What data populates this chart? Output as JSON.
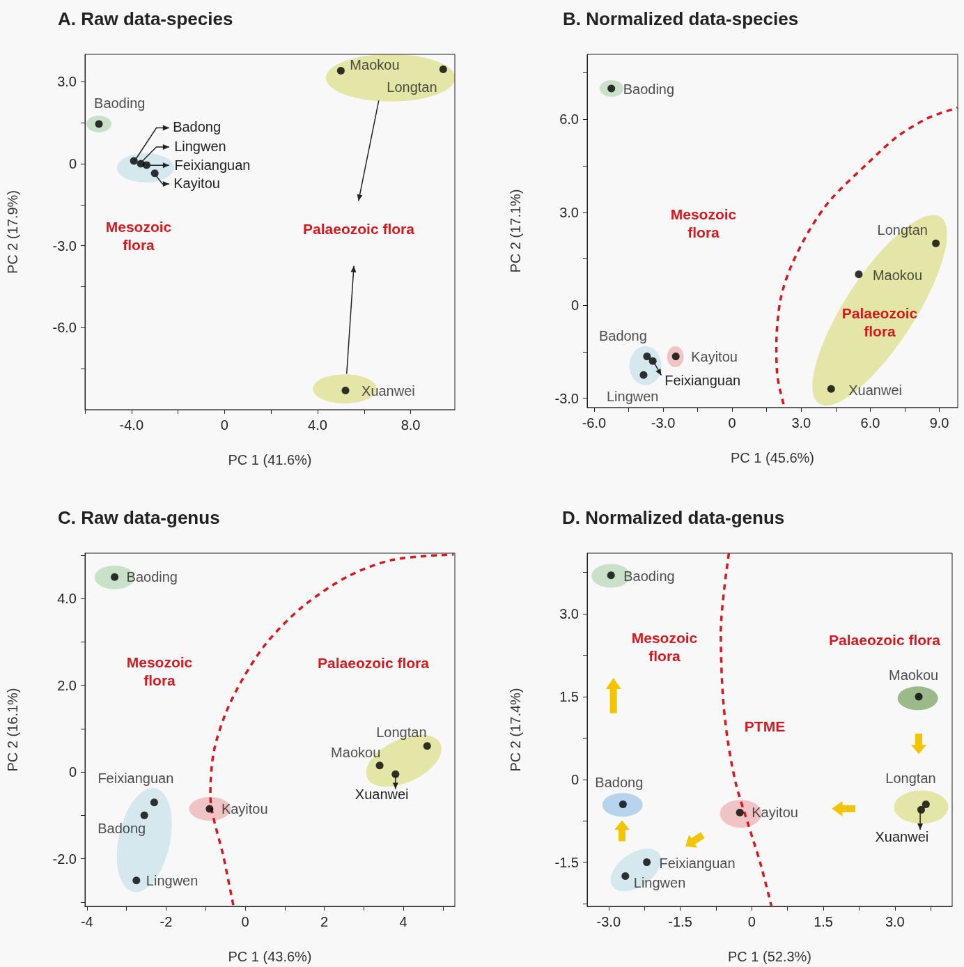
{
  "chart_data": [
    {
      "type": "scatter",
      "title": "A. Raw data-species",
      "xlabel": "PC 1 (41.6%)",
      "ylabel": "PC 2 (17.9%)",
      "marker": "circle",
      "xlim": [
        -6,
        9.9
      ],
      "ylim": [
        -9,
        4
      ],
      "xticks": [
        {
          "value": -6,
          "label": null
        },
        {
          "value": -4,
          "label": "-4.0"
        },
        {
          "value": -2,
          "label": null
        },
        0,
        {
          "value": 2,
          "label": null
        },
        {
          "value": 4,
          "label": "4.0"
        },
        {
          "value": 6,
          "label": null
        },
        {
          "value": 8,
          "label": "8.0"
        }
      ],
      "yticks": [
        {
          "value": -7.5,
          "label": null
        },
        {
          "value": -6,
          "label": "-6.0"
        },
        {
          "value": -4.5,
          "label": null
        },
        {
          "value": -3,
          "label": "-3.0"
        },
        {
          "value": -1.5,
          "label": null
        },
        0,
        {
          "value": 1.5,
          "label": null
        },
        {
          "value": 3,
          "label": "3.0"
        }
      ],
      "annotations": [
        "Mesozoic flora",
        "Palaeozoic flora",
        {
          "text": "Badong",
          "x": -3.9,
          "y": 0.1
        },
        {
          "text": "Lingwen",
          "x": -3.6,
          "y": 0.0
        },
        {
          "text": "Feixianguan",
          "x": -3.35,
          "y": -0.05
        },
        {
          "text": "Kayitou",
          "x": -3.0,
          "y": -0.35
        }
      ],
      "series": [
        {
          "name": "Baoding",
          "color": "#000000",
          "x": [
            -5.4
          ],
          "values": [
            1.45
          ]
        },
        {
          "color": "#000000",
          "x": [
            -3.9
          ],
          "values": [
            0.1
          ]
        },
        {
          "color": "#000000",
          "x": [
            -3.6
          ],
          "values": [
            0.0
          ]
        },
        {
          "color": "#000000",
          "x": [
            -3.35
          ],
          "values": [
            -0.05
          ]
        },
        {
          "color": "#000000",
          "x": [
            -3.0
          ],
          "values": [
            -0.35
          ]
        },
        {
          "name": "Maokou",
          "color": "#000000",
          "x": [
            5.0
          ],
          "values": [
            3.4
          ]
        },
        {
          "name": "Longtan",
          "color": "#000000",
          "x": [
            9.4
          ],
          "values": [
            3.45
          ]
        },
        {
          "name": "Xuanwei",
          "color": "#000000",
          "x": [
            5.2
          ],
          "values": [
            -8.3
          ]
        }
      ]
    },
    {
      "type": "scatter",
      "title": "B. Normalized data-species",
      "xlabel": "PC 1 (45.6%)",
      "ylabel": "PC 2 (17.1%)",
      "marker": "circle",
      "xlim": [
        -6.3,
        9.8
      ],
      "ylim": [
        -3.3,
        8.1
      ],
      "xticks": [
        {
          "value": -6,
          "label": "-6.0"
        },
        {
          "value": -4.5,
          "label": null
        },
        {
          "value": -3,
          "label": "-3.0"
        },
        {
          "value": -1.5,
          "label": null
        },
        0,
        {
          "value": 1.5,
          "label": null
        },
        {
          "value": 3,
          "label": "3.0"
        },
        {
          "value": 4.5,
          "label": null
        },
        {
          "value": 6,
          "label": "6.0"
        },
        {
          "value": 7.5,
          "label": null
        },
        {
          "value": 9,
          "label": "9.0"
        }
      ],
      "yticks": [
        {
          "value": -3,
          "label": "-3.0"
        },
        {
          "value": -1.5,
          "label": null
        },
        0,
        {
          "value": 1.5,
          "label": null
        },
        {
          "value": 3,
          "label": "3.0"
        },
        {
          "value": 4.5,
          "label": null
        },
        {
          "value": 6,
          "label": "6.0"
        },
        {
          "value": 7.5,
          "label": null
        }
      ],
      "annotations": [
        "Mesozoic flora",
        "Palaeozoic flora",
        {
          "text": "Feixianguan",
          "x": -3.45,
          "y": -1.8
        }
      ],
      "series": [
        {
          "name": "Baoding",
          "color": "#000000",
          "x": [
            -5.25
          ],
          "values": [
            7.0
          ]
        },
        {
          "name": "Badong",
          "color": "#000000",
          "x": [
            -3.7
          ],
          "values": [
            -1.65
          ]
        },
        {
          "name": "Lingwen",
          "color": "#000000",
          "x": [
            -3.85
          ],
          "values": [
            -2.25
          ]
        },
        {
          "color": "#000000",
          "x": [
            -3.45
          ],
          "values": [
            -1.8
          ]
        },
        {
          "name": "Kayitou",
          "color": "#000000",
          "x": [
            -2.45
          ],
          "values": [
            -1.65
          ]
        },
        {
          "name": "Maokou",
          "color": "#000000",
          "x": [
            5.5
          ],
          "values": [
            1.0
          ]
        },
        {
          "name": "Longtan",
          "color": "#000000",
          "x": [
            8.85
          ],
          "values": [
            2.0
          ]
        },
        {
          "name": "Xuanwei",
          "color": "#000000",
          "x": [
            4.3
          ],
          "values": [
            -2.7
          ]
        },
        {
          "type": "line",
          "color": "#d7191f",
          "line_style": "dashed",
          "marker": "none",
          "x": [
            2.23,
            1.96,
            1.92,
            2.1,
            2.56,
            3.36,
            4.28,
            5.88,
            7.2,
            8.53,
            9.8
          ],
          "values": [
            -3.19,
            -2.26,
            -1.28,
            0.19,
            1.26,
            2.43,
            3.41,
            4.58,
            5.46,
            6.05,
            6.38
          ]
        }
      ]
    },
    {
      "type": "scatter",
      "title": "C. Raw data-genus",
      "xlabel": "PC 1 (43.6%)",
      "ylabel": "PC 2 (16.1%)",
      "marker": "circle",
      "xlim": [
        -4.05,
        5.3
      ],
      "ylim": [
        -3.1,
        5.05
      ],
      "xticks": [
        -4,
        {
          "value": -3,
          "label": null
        },
        -2,
        {
          "value": -1,
          "label": null
        },
        0,
        {
          "value": 1,
          "label": null
        },
        2,
        {
          "value": 3,
          "label": null
        },
        4,
        {
          "value": 5,
          "label": null
        }
      ],
      "yticks": [
        {
          "value": -3,
          "label": null
        },
        {
          "value": -2,
          "label": "-2.0"
        },
        {
          "value": -1,
          "label": null
        },
        0,
        {
          "value": 1,
          "label": null
        },
        {
          "value": 2,
          "label": "2.0"
        },
        {
          "value": 3,
          "label": null
        },
        {
          "value": 4,
          "label": "4.0"
        },
        {
          "value": 5,
          "label": null
        }
      ],
      "annotations": [
        "Mesozoic flora",
        "Palaeozoic flora",
        {
          "text": "Xuanwei",
          "x": 3.8,
          "y": -0.05
        }
      ],
      "series": [
        {
          "name": "Baoding",
          "color": "#000000",
          "x": [
            -3.3
          ],
          "values": [
            4.5
          ]
        },
        {
          "name": "Badong",
          "color": "#000000",
          "x": [
            -2.55
          ],
          "values": [
            -1.0
          ]
        },
        {
          "name": "Lingwen",
          "color": "#000000",
          "x": [
            -2.75
          ],
          "values": [
            -2.5
          ]
        },
        {
          "name": "Feixianguan",
          "color": "#000000",
          "x": [
            -2.3
          ],
          "values": [
            -0.7
          ]
        },
        {
          "name": "Kayitou",
          "color": "#000000",
          "x": [
            -0.9
          ],
          "values": [
            -0.85
          ]
        },
        {
          "name": "Maokou",
          "color": "#000000",
          "x": [
            3.4
          ],
          "values": [
            0.15
          ]
        },
        {
          "name": "Longtan",
          "color": "#000000",
          "x": [
            4.6
          ],
          "values": [
            0.6
          ]
        },
        {
          "color": "#000000",
          "x": [
            3.8
          ],
          "values": [
            -0.05
          ]
        },
        {
          "type": "line",
          "color": "#d7191f",
          "line_style": "dashed",
          "marker": "none",
          "x": [
            -0.3,
            -0.54,
            -0.88,
            -0.8,
            -0.5,
            -0.05,
            0.56,
            1.47,
            2.61,
            3.75,
            5.27
          ],
          "values": [
            -3.07,
            -1.99,
            -0.53,
            0.44,
            1.34,
            2.17,
            3.0,
            3.83,
            4.52,
            4.9,
            5.02
          ]
        }
      ]
    },
    {
      "type": "scatter",
      "title": "D. Normalized data-genus",
      "xlabel": "PC 1 (52.3%)",
      "ylabel": "PC 2 (17.4%)",
      "marker": "circle",
      "xlim": [
        -3.45,
        4.2
      ],
      "ylim": [
        -2.3,
        4.1
      ],
      "xticks": [
        {
          "value": -3,
          "label": "-3.0"
        },
        {
          "value": -2.25,
          "label": null
        },
        -1.5,
        {
          "value": -0.75,
          "label": null
        },
        0,
        {
          "value": 0.75,
          "label": null
        },
        1.5,
        {
          "value": 2.25,
          "label": null
        },
        {
          "value": 3,
          "label": "3.0"
        },
        {
          "value": 3.75,
          "label": null
        }
      ],
      "yticks": [
        {
          "value": -2.25,
          "label": null
        },
        -1.5,
        {
          "value": -0.75,
          "label": null
        },
        0,
        {
          "value": 0.75,
          "label": null
        },
        1.5,
        {
          "value": 2.25,
          "label": null
        },
        {
          "value": 3,
          "label": "3.0"
        },
        {
          "value": 3.75,
          "label": null
        }
      ],
      "annotations": [
        "Mesozoic flora",
        "Palaeozoic flora",
        "PTME",
        {
          "text": "Xuanwei",
          "x": 3.55,
          "y": -0.55
        }
      ],
      "series": [
        {
          "name": "Baoding",
          "color": "#000000",
          "x": [
            -2.95
          ],
          "values": [
            3.7
          ]
        },
        {
          "name": "Badong",
          "color": "#000000",
          "x": [
            -2.7
          ],
          "values": [
            -0.45
          ]
        },
        {
          "name": "Lingwen",
          "color": "#000000",
          "x": [
            -2.65
          ],
          "values": [
            -1.75
          ]
        },
        {
          "name": "Feixianguan",
          "color": "#000000",
          "x": [
            -2.2
          ],
          "values": [
            -1.5
          ]
        },
        {
          "name": "Kayitou",
          "color": "#000000",
          "x": [
            -0.25
          ],
          "values": [
            -0.6
          ]
        },
        {
          "name": "Maokou",
          "color": "#000000",
          "x": [
            3.5
          ],
          "values": [
            1.5
          ]
        },
        {
          "name": "Longtan",
          "color": "#000000",
          "x": [
            3.65
          ],
          "values": [
            -0.45
          ]
        },
        {
          "color": "#000000",
          "x": [
            3.55
          ],
          "values": [
            -0.55
          ]
        },
        {
          "type": "line",
          "color": "#d7191f",
          "line_style": "dashed",
          "marker": "none",
          "x": [
            -0.48,
            -0.65,
            -0.61,
            -0.51,
            -0.33,
            -0.08,
            0.18,
            0.41
          ],
          "values": [
            4.1,
            2.66,
            1.56,
            0.74,
            -0.09,
            -0.8,
            -1.52,
            -2.29
          ]
        }
      ]
    }
  ]
}
